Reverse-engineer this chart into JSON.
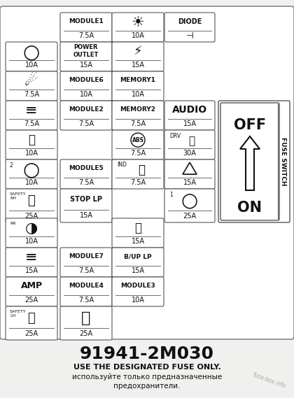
{
  "title_code": "91941-2M030",
  "subtitle1": "USE THE DESIGNATED FUSE ONLY.",
  "subtitle2": "используйте только предназначенные",
  "subtitle3": "предохранители.",
  "watermark": "fuse-box.info",
  "bg": "#f0f0ee",
  "box_edge": "#555555",
  "box_face": "#ffffff",
  "text_color": "#111111"
}
